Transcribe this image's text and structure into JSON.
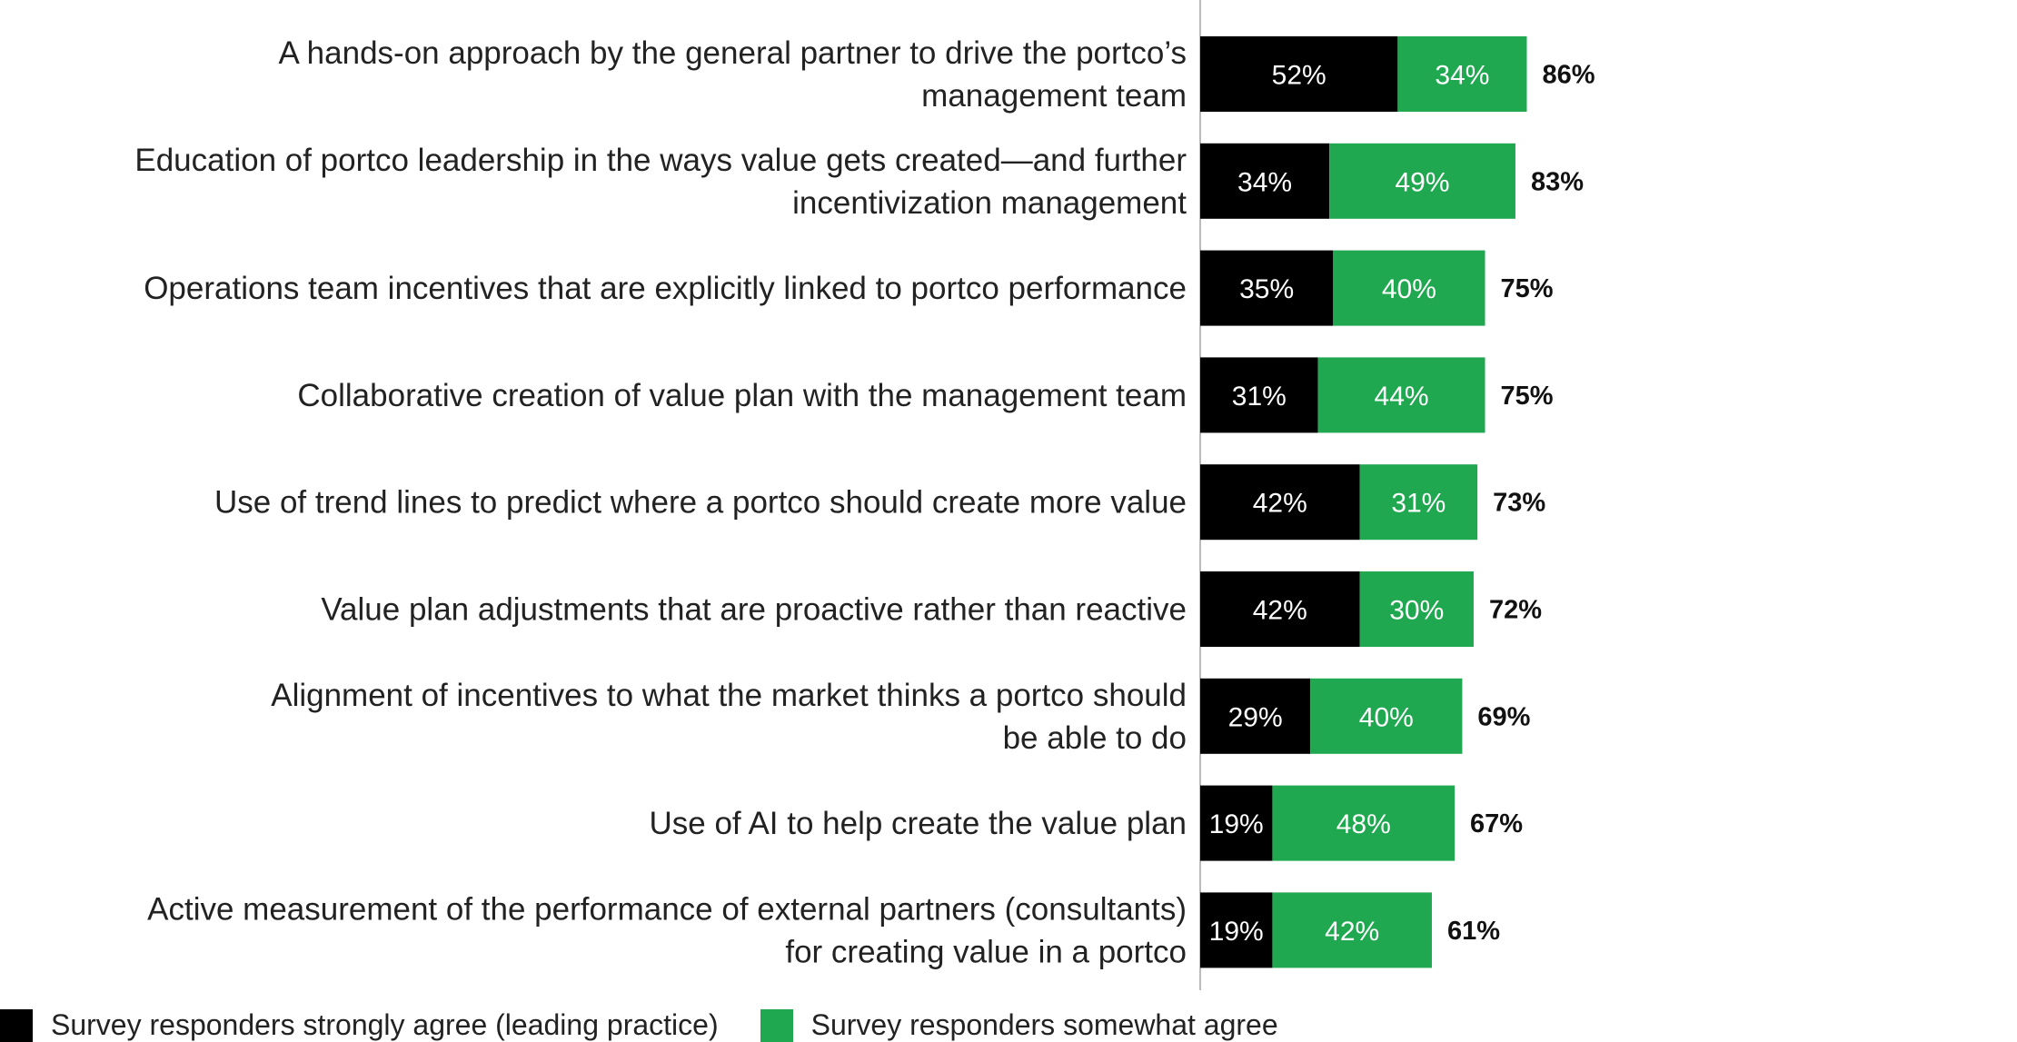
{
  "chart_data": {
    "type": "bar",
    "orientation": "horizontal",
    "stacked": true,
    "categories": [
      [
        "A hands-on approach by the general partner to drive the portco’s",
        "management team"
      ],
      [
        "Education of portco leadership in the ways value gets created—and further",
        "incentivization management"
      ],
      [
        "Operations team incentives that are explicitly linked to portco performance"
      ],
      [
        "Collaborative creation of value plan with the management team"
      ],
      [
        "Use of trend lines to predict where a portco should create more value"
      ],
      [
        "Value plan adjustments that are proactive rather than reactive"
      ],
      [
        "Alignment of incentives to what the market thinks a portco should",
        "be able to do"
      ],
      [
        "Use of AI to help create the value plan"
      ],
      [
        "Active measurement of the performance of external partners (consultants)",
        "for creating value in a portco"
      ]
    ],
    "series": [
      {
        "name": "Survey responders strongly agree (leading practice)",
        "color": "#000000",
        "values": [
          52,
          34,
          35,
          31,
          42,
          42,
          29,
          19,
          19
        ],
        "labels": [
          "52%",
          "34%",
          "35%",
          "31%",
          "42%",
          "42%",
          "29%",
          "19%",
          "19%"
        ]
      },
      {
        "name": "Survey responders somewhat agree",
        "color": "#1fa84f",
        "values": [
          34,
          49,
          40,
          44,
          31,
          30,
          40,
          48,
          42
        ],
        "labels": [
          "34%",
          "49%",
          "40%",
          "44%",
          "31%",
          "30%",
          "40%",
          "48%",
          "42%"
        ]
      }
    ],
    "totals": [
      "86%",
      "83%",
      "75%",
      "75%",
      "73%",
      "72%",
      "69%",
      "67%",
      "61%"
    ],
    "legend_position": "bottom-left",
    "grid": false
  }
}
